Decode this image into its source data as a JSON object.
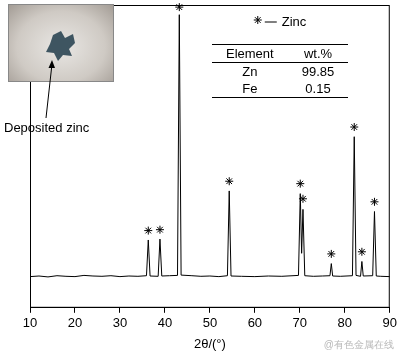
{
  "chart_data": {
    "type": "line",
    "xlabel": "2θ/(°)",
    "x": [
      10,
      12,
      14,
      16,
      18,
      20,
      22,
      24,
      26,
      28,
      30,
      32,
      34,
      35.9,
      36.3,
      36.7,
      38.5,
      38.9,
      39.3,
      41,
      42.8,
      43.2,
      43.6,
      46,
      48,
      50,
      52,
      53.9,
      54.3,
      54.7,
      57,
      60,
      63,
      66,
      69.7,
      70.1,
      70.4,
      70.7,
      71.1,
      73,
      75,
      76.7,
      77.0,
      77.3,
      79,
      81.7,
      82.1,
      82.5,
      83.5,
      83.8,
      84.1,
      86.2,
      86.6,
      87.0,
      88,
      90
    ],
    "values": [
      10.3,
      10.5,
      10.2,
      10.6,
      10.4,
      10.3,
      10.7,
      10.5,
      10.4,
      10.6,
      10.3,
      10.5,
      10.4,
      10.6,
      22.4,
      10.5,
      10.4,
      22.7,
      10.5,
      10.6,
      10.7,
      96.8,
      10.8,
      10.6,
      10.4,
      10.5,
      10.3,
      10.6,
      38.6,
      10.5,
      10.4,
      10.3,
      10.5,
      10.4,
      10.7,
      37.7,
      18,
      32.5,
      10.6,
      10.4,
      10.5,
      10.6,
      14.6,
      10.5,
      10.4,
      10.6,
      56.5,
      10.7,
      10.4,
      15.3,
      10.5,
      10.6,
      31.8,
      10.5,
      10.4,
      10.3
    ],
    "color": "#000000",
    "peak_markers": {
      "name": "Zinc",
      "marker": "asterisk",
      "color": "#000000",
      "x": [
        36.3,
        38.9,
        43.2,
        54.3,
        70.1,
        70.7,
        77.0,
        82.1,
        83.8,
        86.6
      ],
      "y": [
        25.5,
        25.8,
        99.3,
        41.8,
        41,
        36,
        17.8,
        59.7,
        18.5,
        35
      ]
    },
    "legend": "upper right",
    "xlim": [
      10,
      90
    ],
    "xticks": [
      10,
      20,
      30,
      40,
      50,
      60,
      70,
      80,
      90
    ],
    "ylim": [
      0,
      100
    ],
    "yticks": [],
    "tick_labels": "x",
    "grid": false,
    "inset_label": "Deposited zinc",
    "table": {
      "header": [
        "Element",
        "wt.%"
      ],
      "rows": [
        [
          "Zn",
          99.85
        ],
        [
          "Fe",
          0.15
        ]
      ]
    },
    "watermark": "@有色金属在线"
  }
}
